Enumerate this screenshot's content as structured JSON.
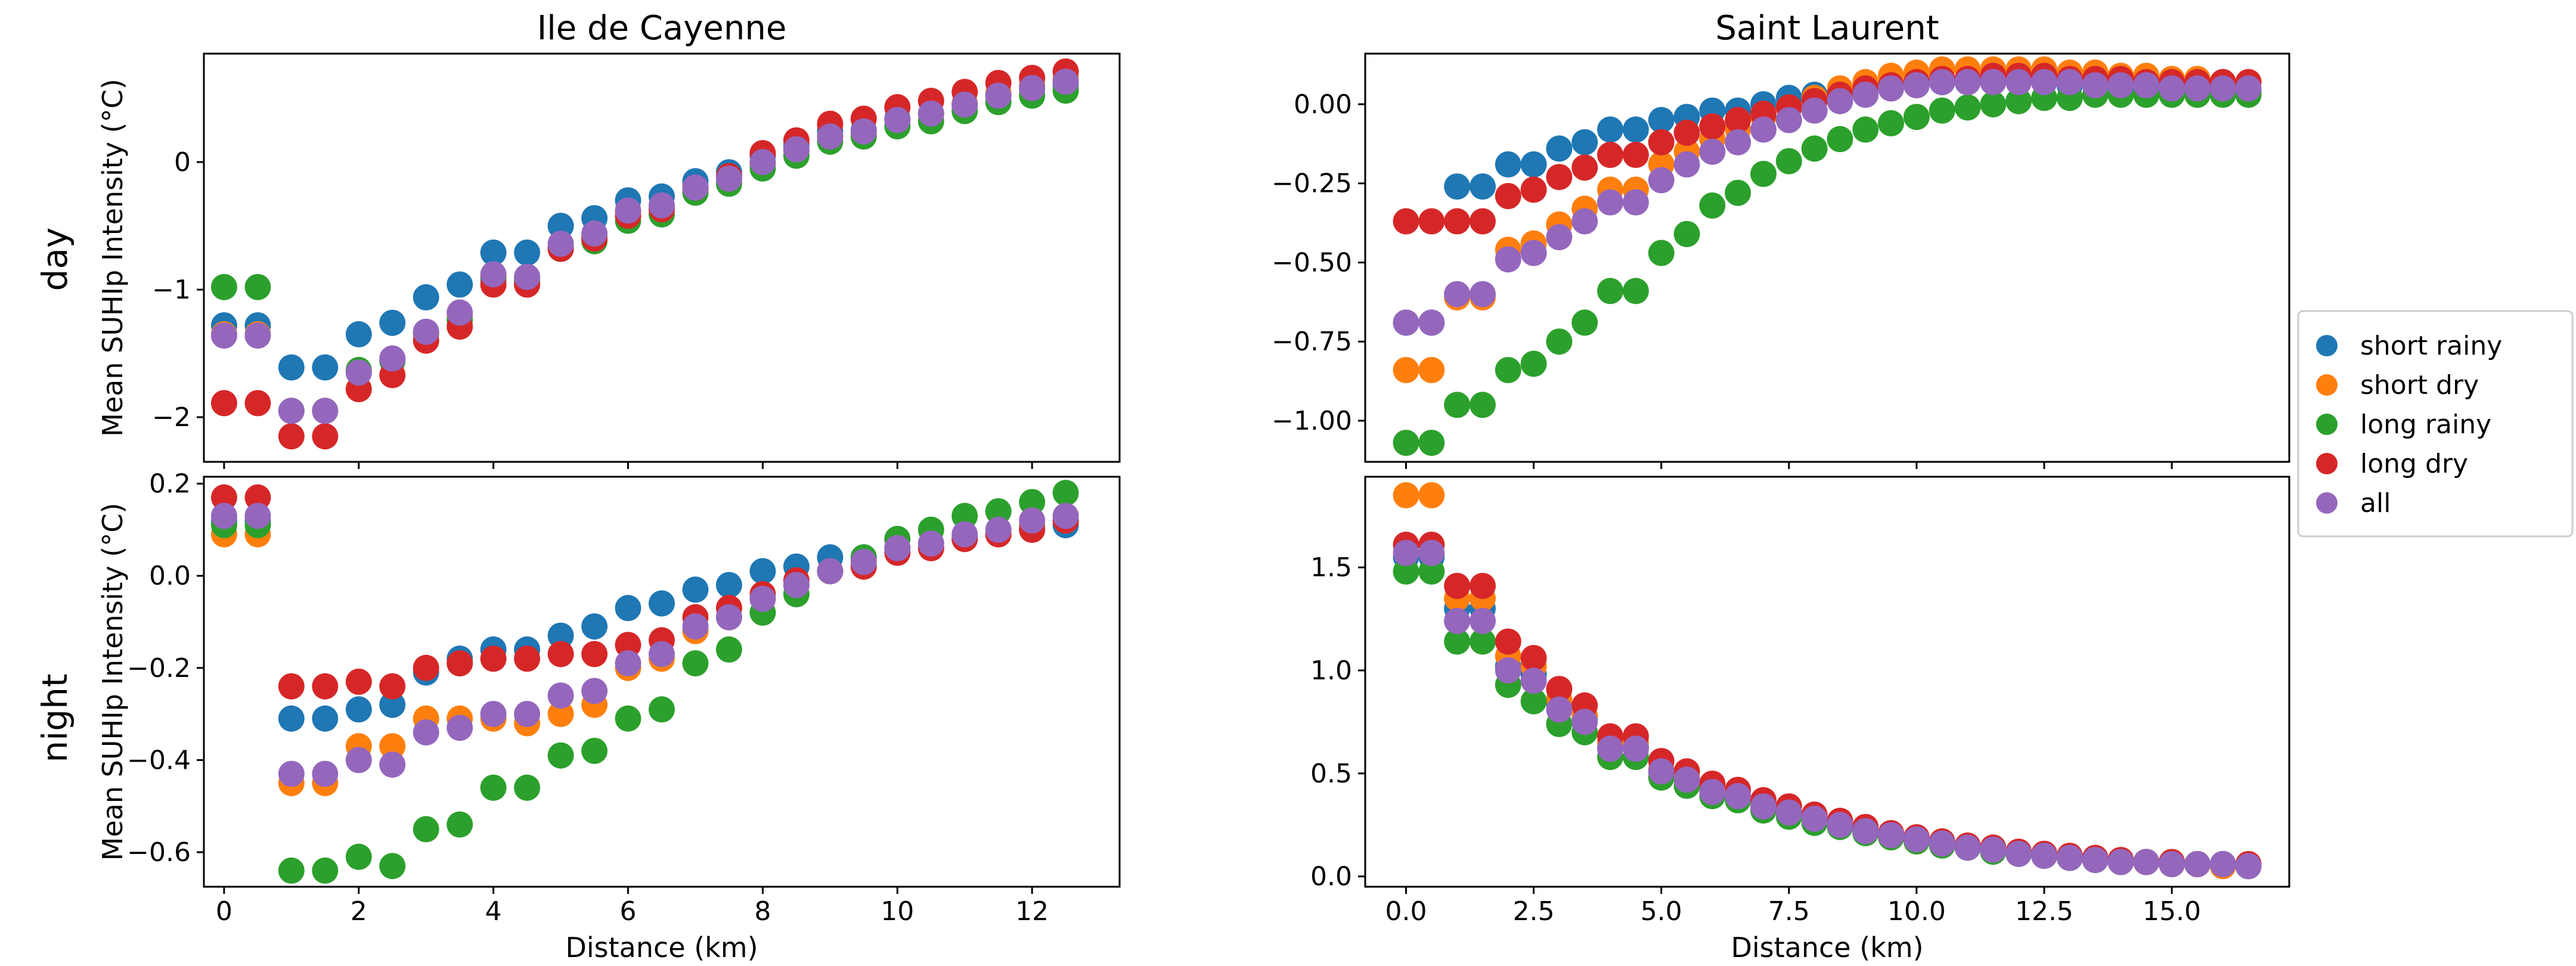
{
  "chart_data": {
    "type": "scatter",
    "legend": [
      "short rainy",
      "short dry",
      "long rainy",
      "long dry",
      "all"
    ],
    "colors": {
      "short rainy": "#1f77b4",
      "short dry": "#ff7f0e",
      "long rainy": "#2ca02c",
      "long dry": "#d62728",
      "all": "#9467bd"
    },
    "row_labels": [
      "day",
      "night"
    ],
    "legend_location": "center-right",
    "panels": [
      {
        "id": "cayenne-day",
        "title": "Ile de Cayenne",
        "xlabel": "",
        "ylabel": "Mean SUHIp Intensity (°C)",
        "xlim": [
          -0.3,
          13.3
        ],
        "ylim": [
          -2.35,
          0.85
        ],
        "xticks": [
          0,
          2,
          4,
          6,
          8,
          10,
          12
        ],
        "xtick_labels": [
          "",
          "",
          "",
          "",
          "",
          "",
          ""
        ],
        "yticks": [
          -2,
          -1,
          0
        ],
        "ytick_labels": [
          "−2",
          "−1",
          "0"
        ],
        "x": [
          0,
          0.5,
          1,
          1.5,
          2,
          2.5,
          3,
          3.5,
          4,
          4.5,
          5,
          5.5,
          6,
          6.5,
          7,
          7.5,
          8,
          8.5,
          9,
          9.5,
          10,
          10.5,
          11,
          11.5,
          12,
          12.5
        ],
        "series": [
          {
            "name": "short rainy",
            "values": [
              -1.28,
              -1.28,
              -1.61,
              -1.61,
              -1.35,
              -1.26,
              -1.06,
              -0.96,
              -0.71,
              -0.71,
              -0.5,
              -0.44,
              -0.3,
              -0.27,
              -0.15,
              -0.08,
              0.05,
              0.13,
              0.24,
              0.25,
              0.34,
              0.38,
              0.45,
              0.52,
              0.57,
              0.6
            ]
          },
          {
            "name": "short dry",
            "values": [
              -1.35,
              -1.35,
              -1.95,
              -1.95,
              -1.64,
              -1.55,
              -1.35,
              -1.2,
              -0.9,
              -0.92,
              -0.66,
              -0.58,
              -0.39,
              -0.35,
              -0.21,
              -0.13,
              -0.01,
              0.09,
              0.2,
              0.24,
              0.33,
              0.38,
              0.46,
              0.54,
              0.6,
              0.65
            ]
          },
          {
            "name": "long rainy",
            "values": [
              -0.98,
              -0.98,
              -1.95,
              -1.95,
              -1.63,
              -1.56,
              -1.34,
              -1.24,
              -0.92,
              -0.93,
              -0.68,
              -0.62,
              -0.46,
              -0.41,
              -0.24,
              -0.17,
              -0.05,
              0.05,
              0.16,
              0.2,
              0.28,
              0.32,
              0.4,
              0.47,
              0.52,
              0.56
            ]
          },
          {
            "name": "long dry",
            "values": [
              -1.89,
              -1.89,
              -2.15,
              -2.15,
              -1.78,
              -1.67,
              -1.4,
              -1.29,
              -0.96,
              -0.96,
              -0.68,
              -0.6,
              -0.42,
              -0.37,
              -0.2,
              -0.11,
              0.07,
              0.17,
              0.3,
              0.34,
              0.43,
              0.48,
              0.55,
              0.62,
              0.66,
              0.71
            ]
          },
          {
            "name": "all",
            "values": [
              -1.36,
              -1.36,
              -1.95,
              -1.95,
              -1.65,
              -1.54,
              -1.33,
              -1.18,
              -0.88,
              -0.9,
              -0.64,
              -0.56,
              -0.38,
              -0.34,
              -0.2,
              -0.13,
              0.0,
              0.1,
              0.2,
              0.24,
              0.33,
              0.38,
              0.45,
              0.52,
              0.58,
              0.63
            ]
          }
        ]
      },
      {
        "id": "laurent-day",
        "title": "Saint Laurent",
        "xlabel": "",
        "ylabel": "",
        "xlim": [
          -0.8,
          17.3
        ],
        "ylim": [
          -1.13,
          0.16
        ],
        "xticks": [
          0,
          2.5,
          5,
          7.5,
          10,
          12.5,
          15
        ],
        "xtick_labels": [
          "",
          "",
          "",
          "",
          "",
          "",
          ""
        ],
        "yticks": [
          0,
          -0.25,
          -0.5,
          -0.75,
          -1
        ],
        "ytick_labels": [
          "0.00",
          "−0.25",
          "−0.50",
          "−0.75",
          "−1.00"
        ],
        "x": [
          0,
          0.5,
          1,
          1.5,
          2,
          2.5,
          3,
          3.5,
          4,
          4.5,
          5,
          5.5,
          6,
          6.5,
          7,
          7.5,
          8,
          8.5,
          9,
          9.5,
          10,
          10.5,
          11,
          11.5,
          12,
          12.5,
          13,
          13.5,
          14,
          14.5,
          15,
          15.5,
          16,
          16.5
        ],
        "series": [
          {
            "name": "short rainy",
            "values": [
              -0.69,
              -0.69,
              -0.26,
              -0.26,
              -0.19,
              -0.19,
              -0.14,
              -0.12,
              -0.08,
              -0.08,
              -0.05,
              -0.04,
              -0.02,
              -0.02,
              0.0,
              0.02,
              0.03,
              0.04,
              0.05,
              0.06,
              0.07,
              0.07,
              0.07,
              0.07,
              0.07,
              0.07,
              0.06,
              0.06,
              0.05,
              0.05,
              0.04,
              0.04,
              0.04,
              0.04
            ]
          },
          {
            "name": "short dry",
            "values": [
              -0.84,
              -0.84,
              -0.61,
              -0.61,
              -0.46,
              -0.44,
              -0.38,
              -0.33,
              -0.27,
              -0.27,
              -0.19,
              -0.15,
              -0.11,
              -0.08,
              -0.04,
              -0.01,
              0.02,
              0.05,
              0.07,
              0.09,
              0.1,
              0.11,
              0.11,
              0.11,
              0.11,
              0.11,
              0.1,
              0.1,
              0.09,
              0.09,
              0.08,
              0.08,
              0.07,
              0.07
            ]
          },
          {
            "name": "long rainy",
            "values": [
              -1.07,
              -1.07,
              -0.95,
              -0.95,
              -0.84,
              -0.82,
              -0.75,
              -0.69,
              -0.59,
              -0.59,
              -0.47,
              -0.41,
              -0.32,
              -0.28,
              -0.22,
              -0.18,
              -0.14,
              -0.11,
              -0.08,
              -0.06,
              -0.04,
              -0.02,
              -0.01,
              0.0,
              0.01,
              0.02,
              0.02,
              0.03,
              0.03,
              0.03,
              0.03,
              0.03,
              0.03,
              0.03
            ]
          },
          {
            "name": "long dry",
            "values": [
              -0.37,
              -0.37,
              -0.37,
              -0.37,
              -0.29,
              -0.27,
              -0.23,
              -0.2,
              -0.16,
              -0.16,
              -0.12,
              -0.09,
              -0.07,
              -0.05,
              -0.03,
              -0.01,
              0.01,
              0.03,
              0.05,
              0.06,
              0.07,
              0.08,
              0.08,
              0.09,
              0.09,
              0.09,
              0.08,
              0.08,
              0.08,
              0.07,
              0.07,
              0.07,
              0.07,
              0.07
            ]
          },
          {
            "name": "all",
            "values": [
              -0.69,
              -0.69,
              -0.6,
              -0.6,
              -0.49,
              -0.47,
              -0.42,
              -0.37,
              -0.31,
              -0.31,
              -0.24,
              -0.19,
              -0.15,
              -0.12,
              -0.08,
              -0.05,
              -0.02,
              0.01,
              0.03,
              0.05,
              0.06,
              0.07,
              0.07,
              0.07,
              0.07,
              0.07,
              0.07,
              0.06,
              0.06,
              0.06,
              0.05,
              0.05,
              0.05,
              0.05
            ]
          }
        ]
      },
      {
        "id": "cayenne-night",
        "title": "",
        "xlabel": "Distance (km)",
        "ylabel": "Mean SUHIp Intensity (°C)",
        "xlim": [
          -0.3,
          13.3
        ],
        "ylim": [
          -0.675,
          0.215
        ],
        "xticks": [
          0,
          2,
          4,
          6,
          8,
          10,
          12
        ],
        "xtick_labels": [
          "0",
          "2",
          "4",
          "6",
          "8",
          "10",
          "12"
        ],
        "yticks": [
          0.2,
          0,
          -0.2,
          -0.4,
          -0.6
        ],
        "ytick_labels": [
          "0.2",
          "0.0",
          "−0.2",
          "−0.4",
          "−0.6"
        ],
        "x": [
          0,
          0.5,
          1,
          1.5,
          2,
          2.5,
          3,
          3.5,
          4,
          4.5,
          5,
          5.5,
          6,
          6.5,
          7,
          7.5,
          8,
          8.5,
          9,
          9.5,
          10,
          10.5,
          11,
          11.5,
          12,
          12.5
        ],
        "series": [
          {
            "name": "short rainy",
            "values": [
              0.12,
              0.12,
              -0.31,
              -0.31,
              -0.29,
              -0.28,
              -0.21,
              -0.18,
              -0.16,
              -0.16,
              -0.13,
              -0.11,
              -0.07,
              -0.06,
              -0.03,
              -0.02,
              0.01,
              0.02,
              0.04,
              0.04,
              0.06,
              0.07,
              0.08,
              0.09,
              0.1,
              0.11
            ]
          },
          {
            "name": "short dry",
            "values": [
              0.09,
              0.09,
              -0.45,
              -0.45,
              -0.37,
              -0.37,
              -0.31,
              -0.31,
              -0.31,
              -0.32,
              -0.3,
              -0.28,
              -0.2,
              -0.18,
              -0.12,
              -0.09,
              -0.05,
              -0.02,
              0.01,
              0.02,
              0.05,
              0.06,
              0.08,
              0.09,
              0.11,
              0.12
            ]
          },
          {
            "name": "long rainy",
            "values": [
              0.11,
              0.11,
              -0.64,
              -0.64,
              -0.61,
              -0.63,
              -0.55,
              -0.54,
              -0.46,
              -0.46,
              -0.39,
              -0.38,
              -0.31,
              -0.29,
              -0.19,
              -0.16,
              -0.08,
              -0.04,
              0.01,
              0.04,
              0.08,
              0.1,
              0.13,
              0.14,
              0.16,
              0.18
            ]
          },
          {
            "name": "long dry",
            "values": [
              0.17,
              0.17,
              -0.24,
              -0.24,
              -0.23,
              -0.24,
              -0.2,
              -0.19,
              -0.18,
              -0.18,
              -0.17,
              -0.17,
              -0.15,
              -0.14,
              -0.09,
              -0.07,
              -0.04,
              -0.01,
              0.01,
              0.02,
              0.05,
              0.06,
              0.08,
              0.09,
              0.1,
              0.12
            ]
          },
          {
            "name": "all",
            "values": [
              0.13,
              0.13,
              -0.43,
              -0.43,
              -0.4,
              -0.41,
              -0.34,
              -0.33,
              -0.3,
              -0.3,
              -0.26,
              -0.25,
              -0.19,
              -0.17,
              -0.11,
              -0.09,
              -0.05,
              -0.02,
              0.01,
              0.03,
              0.06,
              0.07,
              0.09,
              0.1,
              0.12,
              0.13
            ]
          }
        ]
      },
      {
        "id": "laurent-night",
        "title": "",
        "xlabel": "Distance (km)",
        "ylabel": "",
        "xlim": [
          -0.8,
          17.3
        ],
        "ylim": [
          -0.05,
          1.94
        ],
        "xticks": [
          0,
          2.5,
          5,
          7.5,
          10,
          12.5,
          15
        ],
        "xtick_labels": [
          "0.0",
          "2.5",
          "5.0",
          "7.5",
          "10.0",
          "12.5",
          "15.0"
        ],
        "yticks": [
          0,
          0.5,
          1,
          1.5
        ],
        "ytick_labels": [
          "0.0",
          "0.5",
          "1.0",
          "1.5"
        ],
        "x": [
          0,
          0.5,
          1,
          1.5,
          2,
          2.5,
          3,
          3.5,
          4,
          4.5,
          5,
          5.5,
          6,
          6.5,
          7,
          7.5,
          8,
          8.5,
          9,
          9.5,
          10,
          10.5,
          11,
          11.5,
          12,
          12.5,
          13,
          13.5,
          14,
          14.5,
          15,
          15.5,
          16,
          16.5
        ],
        "series": [
          {
            "name": "short rainy",
            "values": [
              1.55,
              1.55,
              1.3,
              1.3,
              1.02,
              0.98,
              0.84,
              0.77,
              0.63,
              0.63,
              0.51,
              0.47,
              0.42,
              0.39,
              0.34,
              0.31,
              0.28,
              0.25,
              0.22,
              0.2,
              0.18,
              0.16,
              0.14,
              0.13,
              0.11,
              0.1,
              0.09,
              0.08,
              0.07,
              0.07,
              0.06,
              0.06,
              0.06,
              0.05
            ]
          },
          {
            "name": "short dry",
            "values": [
              1.85,
              1.85,
              1.35,
              1.35,
              1.07,
              1.02,
              0.86,
              0.78,
              0.65,
              0.65,
              0.52,
              0.48,
              0.42,
              0.39,
              0.34,
              0.31,
              0.28,
              0.25,
              0.22,
              0.19,
              0.17,
              0.16,
              0.14,
              0.13,
              0.11,
              0.1,
              0.09,
              0.08,
              0.07,
              0.07,
              0.06,
              0.06,
              0.05,
              0.05
            ]
          },
          {
            "name": "long rainy",
            "values": [
              1.48,
              1.48,
              1.14,
              1.14,
              0.93,
              0.85,
              0.74,
              0.7,
              0.58,
              0.58,
              0.48,
              0.44,
              0.39,
              0.37,
              0.32,
              0.29,
              0.26,
              0.24,
              0.21,
              0.19,
              0.17,
              0.15,
              0.14,
              0.12,
              0.11,
              0.1,
              0.09,
              0.08,
              0.07,
              0.07,
              0.06,
              0.06,
              0.06,
              0.05
            ]
          },
          {
            "name": "long dry",
            "values": [
              1.61,
              1.61,
              1.41,
              1.41,
              1.14,
              1.06,
              0.91,
              0.83,
              0.68,
              0.68,
              0.56,
              0.51,
              0.45,
              0.42,
              0.37,
              0.34,
              0.3,
              0.27,
              0.24,
              0.21,
              0.19,
              0.17,
              0.15,
              0.14,
              0.12,
              0.11,
              0.1,
              0.09,
              0.08,
              0.07,
              0.07,
              0.06,
              0.06,
              0.06
            ]
          },
          {
            "name": "all",
            "values": [
              1.57,
              1.57,
              1.24,
              1.24,
              1.0,
              0.95,
              0.81,
              0.75,
              0.62,
              0.62,
              0.51,
              0.47,
              0.41,
              0.39,
              0.34,
              0.31,
              0.28,
              0.25,
              0.22,
              0.2,
              0.18,
              0.16,
              0.14,
              0.13,
              0.11,
              0.1,
              0.09,
              0.08,
              0.07,
              0.07,
              0.06,
              0.06,
              0.06,
              0.05
            ]
          }
        ]
      }
    ]
  }
}
